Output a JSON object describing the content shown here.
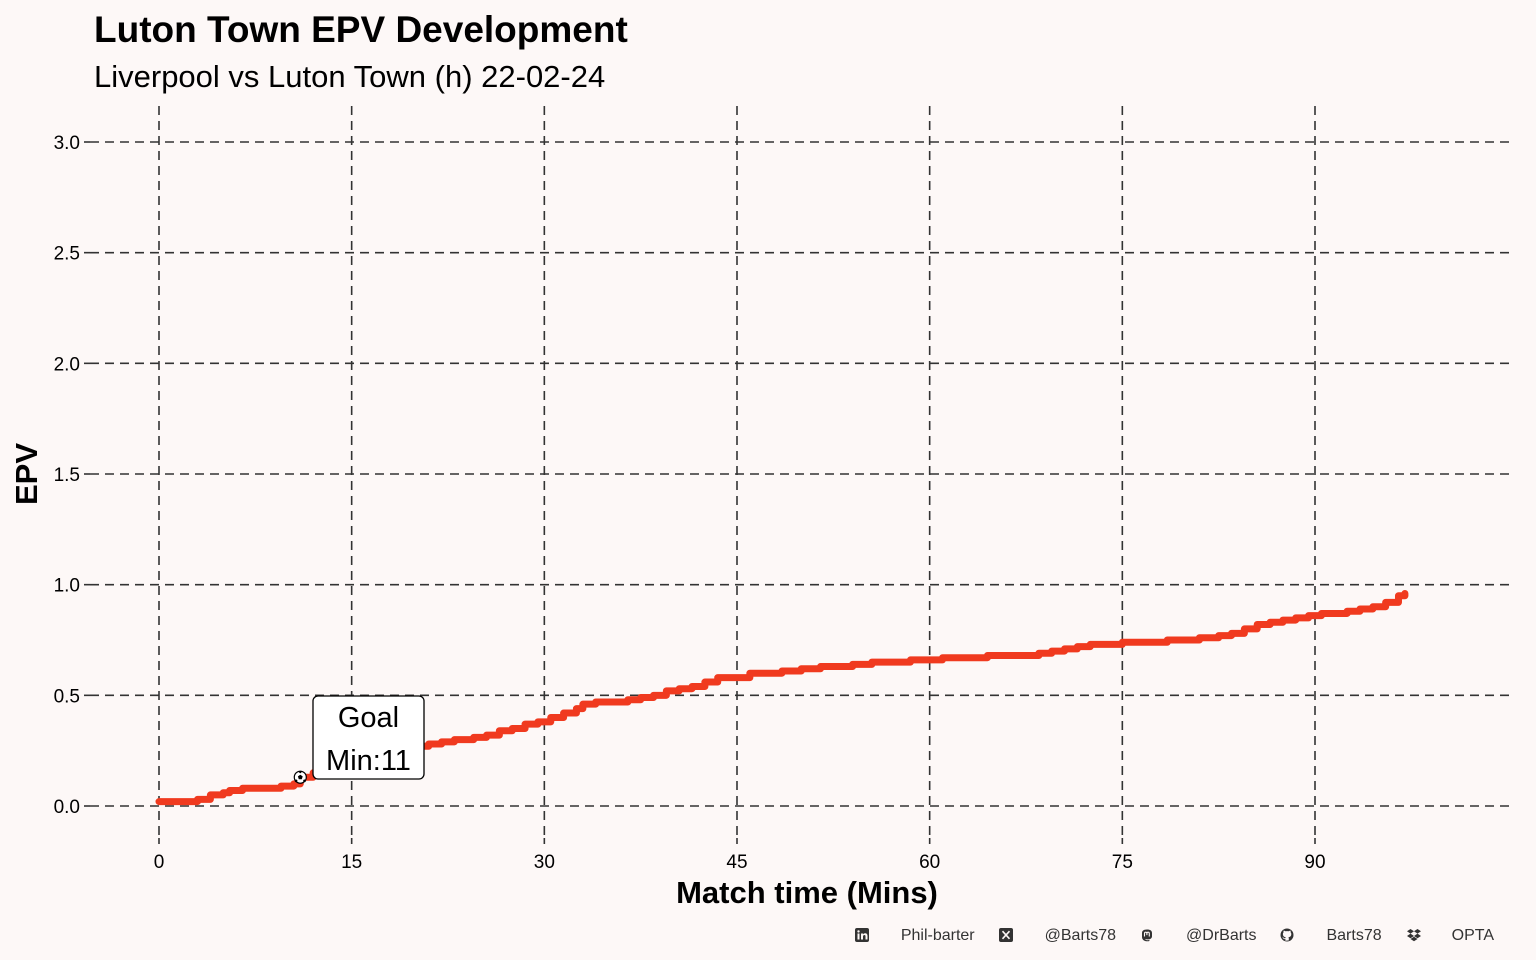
{
  "chart_data": {
    "type": "line",
    "title": "Luton Town EPV Development",
    "subtitle": "Liverpool vs Luton Town (h) 22-02-24",
    "xlabel": "Match time (Mins)",
    "ylabel": "EPV",
    "xlim": [
      0,
      97
    ],
    "ylim": [
      0,
      3.0
    ],
    "xticks": [
      "0",
      "15",
      "30",
      "45",
      "60",
      "75",
      "90"
    ],
    "yticks": [
      "0.0",
      "0.5",
      "1.0",
      "1.5",
      "2.0",
      "2.5",
      "3.0"
    ],
    "grid": true,
    "line_color": "#f03a1f",
    "series": [
      {
        "x": [
          0,
          1.5,
          2.5,
          3,
          4,
          5,
          5.5,
          6.5,
          8,
          9.5,
          10.5,
          11,
          12,
          13,
          14,
          15,
          16,
          17,
          18,
          20,
          21,
          22,
          23,
          24.5,
          25.5,
          26.5,
          27.5,
          28.5,
          29.5,
          30.5,
          31.5,
          32.5,
          33,
          34,
          35,
          36.5,
          37.5,
          38.5,
          39.5,
          40.5,
          41.5,
          42.5,
          43.5,
          45,
          46,
          47,
          48.5,
          50,
          51.5,
          52.5,
          54,
          55.5,
          57,
          58.5,
          60,
          61,
          62,
          63.5,
          64.5,
          66,
          67,
          68.5,
          69.5,
          70.5,
          71.5,
          72.5,
          73.5,
          75,
          76.5,
          77.5,
          78.5,
          79.5,
          81,
          82.5,
          83.5,
          84.5,
          85.5,
          86.5,
          87.5,
          88.5,
          89.5,
          90.5,
          91.5,
          92.5,
          93.5,
          94.5,
          95.5,
          96.5,
          97
        ],
        "y": [
          0.02,
          0.02,
          0.02,
          0.03,
          0.05,
          0.06,
          0.07,
          0.08,
          0.08,
          0.09,
          0.1,
          0.13,
          0.15,
          0.17,
          0.19,
          0.2,
          0.21,
          0.23,
          0.25,
          0.27,
          0.28,
          0.29,
          0.3,
          0.31,
          0.32,
          0.34,
          0.35,
          0.37,
          0.38,
          0.4,
          0.42,
          0.44,
          0.46,
          0.47,
          0.47,
          0.48,
          0.49,
          0.5,
          0.52,
          0.53,
          0.54,
          0.56,
          0.58,
          0.58,
          0.6,
          0.6,
          0.61,
          0.62,
          0.63,
          0.63,
          0.64,
          0.65,
          0.65,
          0.66,
          0.66,
          0.67,
          0.67,
          0.67,
          0.68,
          0.68,
          0.68,
          0.69,
          0.7,
          0.71,
          0.72,
          0.73,
          0.73,
          0.74,
          0.74,
          0.74,
          0.75,
          0.75,
          0.76,
          0.77,
          0.78,
          0.8,
          0.82,
          0.83,
          0.84,
          0.85,
          0.86,
          0.87,
          0.87,
          0.88,
          0.89,
          0.9,
          0.92,
          0.95,
          0.96
        ]
      }
    ],
    "annotations": [
      {
        "x": 11,
        "y": 0.13,
        "label_line1": "Goal",
        "label_line2": "Min:11",
        "marker": "football-icon"
      }
    ]
  },
  "caption": {
    "items": [
      {
        "icon": "linkedin-icon",
        "text": "Phil-barter"
      },
      {
        "icon": "x-twitter-icon",
        "text": "@Barts78"
      },
      {
        "icon": "mastodon-icon",
        "text": "@DrBarts"
      },
      {
        "icon": "github-icon",
        "text": "Barts78"
      },
      {
        "icon": "dropbox-icon",
        "text": "OPTA"
      }
    ]
  }
}
